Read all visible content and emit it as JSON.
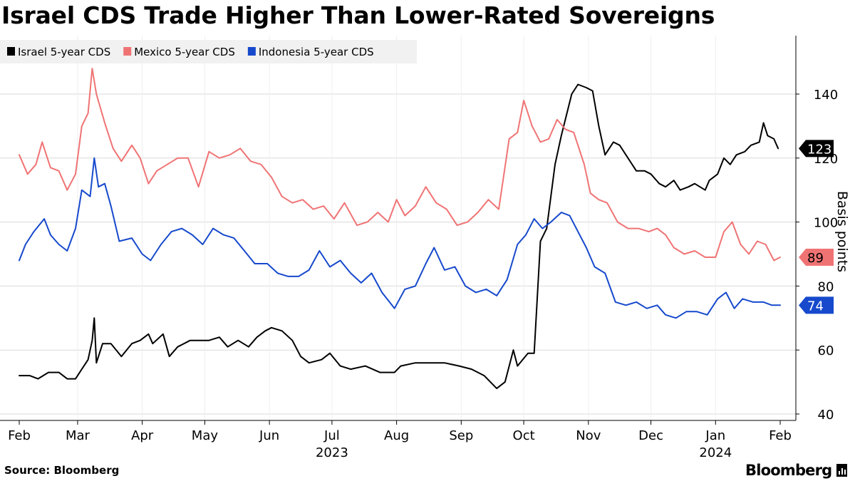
{
  "chart_data": {
    "type": "line",
    "title": "Israel CDS Trade Higher Than Lower-Rated Sovereigns",
    "ylabel": "Basis points",
    "xlabel": "",
    "ylim": [
      38,
      157
    ],
    "yticks": [
      40,
      60,
      80,
      100,
      120,
      140
    ],
    "x_range": [
      "2023-02-01",
      "2024-02-01"
    ],
    "x_ticks": [
      {
        "label": "Feb",
        "date": "2023-02-01"
      },
      {
        "label": "Mar",
        "date": "2023-03-01"
      },
      {
        "label": "Apr",
        "date": "2023-04-01"
      },
      {
        "label": "May",
        "date": "2023-05-01"
      },
      {
        "label": "Jun",
        "date": "2023-06-01"
      },
      {
        "label": "Jul",
        "date": "2023-07-01"
      },
      {
        "label": "Aug",
        "date": "2023-08-01"
      },
      {
        "label": "Sep",
        "date": "2023-09-01"
      },
      {
        "label": "Oct",
        "date": "2023-10-01"
      },
      {
        "label": "Nov",
        "date": "2023-11-01"
      },
      {
        "label": "Dec",
        "date": "2023-12-01"
      },
      {
        "label": "Jan",
        "date": "2024-01-01"
      },
      {
        "label": "Feb",
        "date": "2024-02-01"
      }
    ],
    "year_labels": [
      {
        "label": "2023",
        "date": "2023-07-01"
      },
      {
        "label": "2024",
        "date": "2024-01-01"
      }
    ],
    "grid": true,
    "legend_position": "top-left",
    "series": [
      {
        "name": "Israel 5-year CDS",
        "color": "#000000",
        "end_label": "123",
        "points": [
          [
            "2023-02-01",
            52
          ],
          [
            "2023-02-06",
            52
          ],
          [
            "2023-02-10",
            51
          ],
          [
            "2023-02-15",
            53
          ],
          [
            "2023-02-20",
            53
          ],
          [
            "2023-02-24",
            51
          ],
          [
            "2023-02-28",
            51
          ],
          [
            "2023-03-03",
            54
          ],
          [
            "2023-03-06",
            57
          ],
          [
            "2023-03-08",
            63
          ],
          [
            "2023-03-09",
            70
          ],
          [
            "2023-03-10",
            56
          ],
          [
            "2023-03-13",
            62
          ],
          [
            "2023-03-17",
            62
          ],
          [
            "2023-03-22",
            58
          ],
          [
            "2023-03-27",
            62
          ],
          [
            "2023-03-31",
            63
          ],
          [
            "2023-04-04",
            65
          ],
          [
            "2023-04-06",
            62
          ],
          [
            "2023-04-11",
            65
          ],
          [
            "2023-04-14",
            58
          ],
          [
            "2023-04-18",
            61
          ],
          [
            "2023-04-24",
            63
          ],
          [
            "2023-04-28",
            63
          ],
          [
            "2023-05-03",
            63
          ],
          [
            "2023-05-08",
            64
          ],
          [
            "2023-05-12",
            61
          ],
          [
            "2023-05-17",
            63
          ],
          [
            "2023-05-22",
            61
          ],
          [
            "2023-05-26",
            64
          ],
          [
            "2023-05-30",
            66
          ],
          [
            "2023-06-02",
            67
          ],
          [
            "2023-06-07",
            66
          ],
          [
            "2023-06-12",
            63
          ],
          [
            "2023-06-16",
            58
          ],
          [
            "2023-06-20",
            56
          ],
          [
            "2023-06-26",
            57
          ],
          [
            "2023-06-30",
            59
          ],
          [
            "2023-07-05",
            55
          ],
          [
            "2023-07-10",
            54
          ],
          [
            "2023-07-17",
            55
          ],
          [
            "2023-07-24",
            53
          ],
          [
            "2023-07-31",
            53
          ],
          [
            "2023-08-03",
            55
          ],
          [
            "2023-08-10",
            56
          ],
          [
            "2023-08-17",
            56
          ],
          [
            "2023-08-24",
            56
          ],
          [
            "2023-08-31",
            55
          ],
          [
            "2023-09-06",
            54
          ],
          [
            "2023-09-12",
            52
          ],
          [
            "2023-09-18",
            48
          ],
          [
            "2023-09-22",
            50
          ],
          [
            "2023-09-26",
            60
          ],
          [
            "2023-09-28",
            55
          ],
          [
            "2023-10-03",
            59
          ],
          [
            "2023-10-06",
            59
          ],
          [
            "2023-10-09",
            94
          ],
          [
            "2023-10-12",
            98
          ],
          [
            "2023-10-16",
            118
          ],
          [
            "2023-10-19",
            127
          ],
          [
            "2023-10-24",
            140
          ],
          [
            "2023-10-27",
            143
          ],
          [
            "2023-10-31",
            142
          ],
          [
            "2023-11-03",
            141
          ],
          [
            "2023-11-06",
            130
          ],
          [
            "2023-11-09",
            121
          ],
          [
            "2023-11-13",
            125
          ],
          [
            "2023-11-16",
            124
          ],
          [
            "2023-11-20",
            120
          ],
          [
            "2023-11-24",
            116
          ],
          [
            "2023-11-28",
            116
          ],
          [
            "2023-12-01",
            115
          ],
          [
            "2023-12-05",
            112
          ],
          [
            "2023-12-08",
            111
          ],
          [
            "2023-12-12",
            113
          ],
          [
            "2023-12-15",
            110
          ],
          [
            "2023-12-19",
            111
          ],
          [
            "2023-12-22",
            112
          ],
          [
            "2023-12-27",
            110
          ],
          [
            "2023-12-29",
            113
          ],
          [
            "2024-01-02",
            115
          ],
          [
            "2024-01-05",
            120
          ],
          [
            "2024-01-08",
            118
          ],
          [
            "2024-01-11",
            121
          ],
          [
            "2024-01-15",
            122
          ],
          [
            "2024-01-18",
            124
          ],
          [
            "2024-01-22",
            125
          ],
          [
            "2024-01-24",
            131
          ],
          [
            "2024-01-26",
            127
          ],
          [
            "2024-01-29",
            126
          ],
          [
            "2024-01-31",
            123
          ]
        ]
      },
      {
        "name": "Mexico 5-year CDS",
        "color": "#f07374",
        "end_label": "89",
        "points": [
          [
            "2023-02-01",
            121
          ],
          [
            "2023-02-05",
            115
          ],
          [
            "2023-02-09",
            118
          ],
          [
            "2023-02-12",
            125
          ],
          [
            "2023-02-16",
            117
          ],
          [
            "2023-02-20",
            116
          ],
          [
            "2023-02-24",
            110
          ],
          [
            "2023-02-28",
            115
          ],
          [
            "2023-03-03",
            130
          ],
          [
            "2023-03-06",
            134
          ],
          [
            "2023-03-08",
            148
          ],
          [
            "2023-03-10",
            140
          ],
          [
            "2023-03-14",
            131
          ],
          [
            "2023-03-18",
            123
          ],
          [
            "2023-03-22",
            119
          ],
          [
            "2023-03-27",
            124
          ],
          [
            "2023-03-31",
            120
          ],
          [
            "2023-04-04",
            112
          ],
          [
            "2023-04-08",
            116
          ],
          [
            "2023-04-13",
            118
          ],
          [
            "2023-04-18",
            120
          ],
          [
            "2023-04-23",
            120
          ],
          [
            "2023-04-28",
            111
          ],
          [
            "2023-05-03",
            122
          ],
          [
            "2023-05-08",
            120
          ],
          [
            "2023-05-13",
            121
          ],
          [
            "2023-05-18",
            123
          ],
          [
            "2023-05-23",
            119
          ],
          [
            "2023-05-28",
            118
          ],
          [
            "2023-06-02",
            114
          ],
          [
            "2023-06-07",
            108
          ],
          [
            "2023-06-12",
            106
          ],
          [
            "2023-06-17",
            107
          ],
          [
            "2023-06-22",
            104
          ],
          [
            "2023-06-27",
            105
          ],
          [
            "2023-07-02",
            101
          ],
          [
            "2023-07-07",
            106
          ],
          [
            "2023-07-13",
            99
          ],
          [
            "2023-07-18",
            100
          ],
          [
            "2023-07-23",
            103
          ],
          [
            "2023-07-28",
            100
          ],
          [
            "2023-08-01",
            107
          ],
          [
            "2023-08-05",
            102
          ],
          [
            "2023-08-10",
            105
          ],
          [
            "2023-08-15",
            111
          ],
          [
            "2023-08-20",
            106
          ],
          [
            "2023-08-25",
            104
          ],
          [
            "2023-08-30",
            99
          ],
          [
            "2023-09-04",
            100
          ],
          [
            "2023-09-09",
            103
          ],
          [
            "2023-09-14",
            107
          ],
          [
            "2023-09-19",
            104
          ],
          [
            "2023-09-24",
            126
          ],
          [
            "2023-09-28",
            128
          ],
          [
            "2023-10-01",
            138
          ],
          [
            "2023-10-05",
            130
          ],
          [
            "2023-10-09",
            125
          ],
          [
            "2023-10-13",
            126
          ],
          [
            "2023-10-17",
            132
          ],
          [
            "2023-10-21",
            129
          ],
          [
            "2023-10-25",
            128
          ],
          [
            "2023-10-30",
            118
          ],
          [
            "2023-11-02",
            109
          ],
          [
            "2023-11-06",
            107
          ],
          [
            "2023-11-10",
            106
          ],
          [
            "2023-11-15",
            100
          ],
          [
            "2023-11-20",
            98
          ],
          [
            "2023-11-25",
            98
          ],
          [
            "2023-11-30",
            97
          ],
          [
            "2023-12-04",
            98
          ],
          [
            "2023-12-08",
            96
          ],
          [
            "2023-12-12",
            92
          ],
          [
            "2023-12-17",
            90
          ],
          [
            "2023-12-22",
            91
          ],
          [
            "2023-12-27",
            89
          ],
          [
            "2024-01-01",
            89
          ],
          [
            "2024-01-05",
            97
          ],
          [
            "2024-01-09",
            100
          ],
          [
            "2024-01-13",
            93
          ],
          [
            "2024-01-17",
            90
          ],
          [
            "2024-01-21",
            94
          ],
          [
            "2024-01-25",
            93
          ],
          [
            "2024-01-29",
            88
          ],
          [
            "2024-02-01",
            89
          ]
        ]
      },
      {
        "name": "Indonesia 5-year CDS",
        "color": "#1649cc",
        "end_label": "74",
        "points": [
          [
            "2023-02-01",
            88
          ],
          [
            "2023-02-04",
            93
          ],
          [
            "2023-02-08",
            97
          ],
          [
            "2023-02-13",
            101
          ],
          [
            "2023-02-16",
            96
          ],
          [
            "2023-02-20",
            93
          ],
          [
            "2023-02-24",
            91
          ],
          [
            "2023-02-28",
            98
          ],
          [
            "2023-03-03",
            110
          ],
          [
            "2023-03-07",
            108
          ],
          [
            "2023-03-09",
            120
          ],
          [
            "2023-03-11",
            111
          ],
          [
            "2023-03-14",
            112
          ],
          [
            "2023-03-17",
            105
          ],
          [
            "2023-03-21",
            94
          ],
          [
            "2023-03-27",
            95
          ],
          [
            "2023-04-01",
            90
          ],
          [
            "2023-04-05",
            88
          ],
          [
            "2023-04-10",
            93
          ],
          [
            "2023-04-15",
            97
          ],
          [
            "2023-04-20",
            98
          ],
          [
            "2023-04-25",
            96
          ],
          [
            "2023-04-30",
            93
          ],
          [
            "2023-05-05",
            98
          ],
          [
            "2023-05-10",
            96
          ],
          [
            "2023-05-15",
            95
          ],
          [
            "2023-05-20",
            91
          ],
          [
            "2023-05-25",
            87
          ],
          [
            "2023-05-31",
            87
          ],
          [
            "2023-06-05",
            84
          ],
          [
            "2023-06-10",
            83
          ],
          [
            "2023-06-15",
            83
          ],
          [
            "2023-06-20",
            85
          ],
          [
            "2023-06-25",
            91
          ],
          [
            "2023-06-30",
            86
          ],
          [
            "2023-07-05",
            88
          ],
          [
            "2023-07-10",
            84
          ],
          [
            "2023-07-15",
            81
          ],
          [
            "2023-07-20",
            84
          ],
          [
            "2023-07-25",
            78
          ],
          [
            "2023-07-31",
            73
          ],
          [
            "2023-08-05",
            79
          ],
          [
            "2023-08-10",
            80
          ],
          [
            "2023-08-15",
            87
          ],
          [
            "2023-08-19",
            92
          ],
          [
            "2023-08-24",
            85
          ],
          [
            "2023-08-29",
            86
          ],
          [
            "2023-09-03",
            80
          ],
          [
            "2023-09-08",
            78
          ],
          [
            "2023-09-13",
            79
          ],
          [
            "2023-09-18",
            77
          ],
          [
            "2023-09-23",
            82
          ],
          [
            "2023-09-28",
            93
          ],
          [
            "2023-10-02",
            96
          ],
          [
            "2023-10-06",
            101
          ],
          [
            "2023-10-10",
            98
          ],
          [
            "2023-10-14",
            100
          ],
          [
            "2023-10-19",
            103
          ],
          [
            "2023-10-23",
            102
          ],
          [
            "2023-10-27",
            97
          ],
          [
            "2023-10-31",
            92
          ],
          [
            "2023-11-04",
            86
          ],
          [
            "2023-11-09",
            84
          ],
          [
            "2023-11-14",
            75
          ],
          [
            "2023-11-19",
            74
          ],
          [
            "2023-11-24",
            75
          ],
          [
            "2023-11-29",
            73
          ],
          [
            "2023-12-04",
            74
          ],
          [
            "2023-12-08",
            71
          ],
          [
            "2023-12-13",
            70
          ],
          [
            "2023-12-18",
            72
          ],
          [
            "2023-12-23",
            72
          ],
          [
            "2023-12-28",
            71
          ],
          [
            "2024-01-02",
            76
          ],
          [
            "2024-01-06",
            78
          ],
          [
            "2024-01-10",
            73
          ],
          [
            "2024-01-14",
            76
          ],
          [
            "2024-01-19",
            75
          ],
          [
            "2024-01-24",
            75
          ],
          [
            "2024-01-28",
            74
          ],
          [
            "2024-02-01",
            74
          ]
        ]
      }
    ]
  },
  "footer": {
    "source": "Source: Bloomberg",
    "brand": "Bloomberg"
  }
}
